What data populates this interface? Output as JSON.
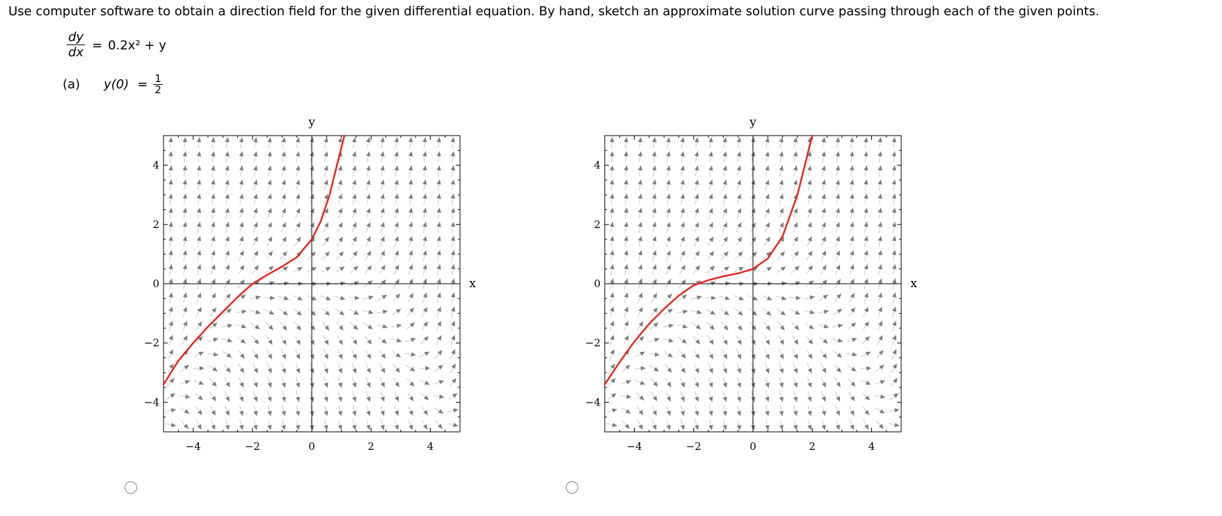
{
  "instructions": "Use computer software to obtain a direction field for the given differential equation. By hand, sketch an approximate solution curve passing through each of the given points.",
  "equation": {
    "lhs_numerator": "dy",
    "lhs_denominator": "dx",
    "equals": "=",
    "rhs": "0.2x² + y"
  },
  "part": {
    "label": "(a)",
    "lhs": "y(0)",
    "equals": "=",
    "numerator": "1",
    "denominator": "2"
  },
  "chart_data": [
    {
      "type": "line",
      "xlabel": "x",
      "ylabel": "y",
      "xlim": [
        -5,
        5
      ],
      "ylim": [
        -5,
        5
      ],
      "xticks": [
        -4,
        -2,
        0,
        2,
        4
      ],
      "yticks": [
        -4,
        -2,
        0,
        2,
        4
      ],
      "x_tick_labels": [
        "−4",
        "−2",
        "0",
        "2",
        "4"
      ],
      "y_tick_labels": [
        "−4",
        "−2",
        "0",
        "2",
        "4"
      ],
      "direction_field": "0.2x^2 + y",
      "curve_color": "#e8201a",
      "solution_curve": {
        "x": [
          -5,
          -4.5,
          -4,
          -3.5,
          -3,
          -2.5,
          -2,
          -1.5,
          -1,
          -0.5,
          0,
          0.3,
          0.6,
          0.9,
          1.1
        ],
        "y": [
          -3.4,
          -2.6,
          -2.0,
          -1.45,
          -0.95,
          -0.45,
          0.0,
          0.3,
          0.58,
          0.9,
          1.5,
          2.1,
          3.0,
          4.2,
          5.0
        ]
      }
    },
    {
      "type": "line",
      "xlabel": "x",
      "ylabel": "y",
      "xlim": [
        -5,
        5
      ],
      "ylim": [
        -5,
        5
      ],
      "xticks": [
        -4,
        -2,
        0,
        2,
        4
      ],
      "yticks": [
        -4,
        -2,
        0,
        2,
        4
      ],
      "x_tick_labels": [
        "−4",
        "−2",
        "0",
        "2",
        "4"
      ],
      "y_tick_labels": [
        "−4",
        "−2",
        "0",
        "2",
        "4"
      ],
      "direction_field": "0.2x^2 + y",
      "curve_color": "#e8201a",
      "solution_curve": {
        "x": [
          -5,
          -4.5,
          -4,
          -3.5,
          -3,
          -2.5,
          -2,
          -1.5,
          -1,
          -0.5,
          0,
          0.5,
          1,
          1.5,
          1.8,
          2.0
        ],
        "y": [
          -3.4,
          -2.65,
          -1.95,
          -1.35,
          -0.85,
          -0.4,
          -0.05,
          0.12,
          0.25,
          0.35,
          0.5,
          0.85,
          1.6,
          3.0,
          4.2,
          5.0
        ]
      }
    }
  ]
}
